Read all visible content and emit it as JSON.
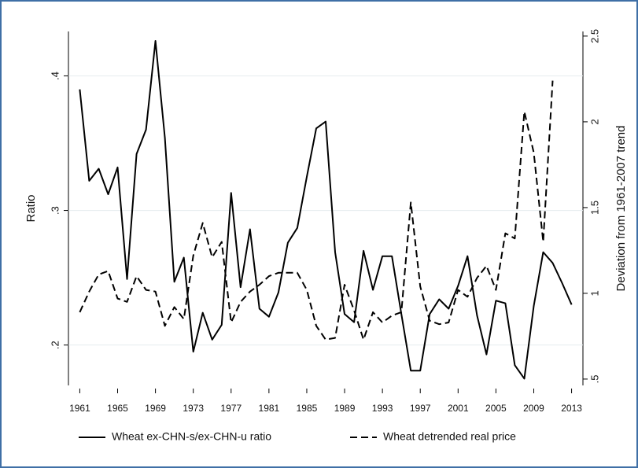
{
  "chart_data": {
    "type": "line",
    "x": [
      1961,
      1962,
      1963,
      1964,
      1965,
      1966,
      1967,
      1968,
      1969,
      1970,
      1971,
      1972,
      1973,
      1974,
      1975,
      1976,
      1977,
      1978,
      1979,
      1980,
      1981,
      1982,
      1983,
      1984,
      1985,
      1986,
      1987,
      1988,
      1989,
      1990,
      1991,
      1992,
      1993,
      1994,
      1995,
      1996,
      1997,
      1998,
      1999,
      2000,
      2001,
      2002,
      2003,
      2004,
      2005,
      2006,
      2007,
      2008,
      2009,
      2010,
      2011,
      2012,
      2013
    ],
    "xlim": [
      1959.8,
      2014.2
    ],
    "xticks": [
      1961,
      1965,
      1969,
      1973,
      1977,
      1981,
      1985,
      1989,
      1993,
      1997,
      2001,
      2005,
      2009,
      2013
    ],
    "ylabel": "Ratio",
    "y2label": "Deviation from 1961-2007 trend",
    "ylim": [
      0.17,
      0.433
    ],
    "yticks": [
      {
        "value": 0.2,
        "label": ".2"
      },
      {
        "value": 0.3,
        "label": ".3"
      },
      {
        "value": 0.4,
        "label": ".4"
      }
    ],
    "y2lim": [
      0.463,
      2.527
    ],
    "y2ticks": [
      {
        "value": 0.5,
        "label": ".5"
      },
      1,
      1.5,
      2,
      2.5
    ],
    "grid": true,
    "legend": "bottom",
    "series": [
      {
        "name": "Wheat ex-CHN-s/ex-CHN-u ratio",
        "color": "#000000",
        "style": "solid",
        "values": [
          0.39,
          0.322,
          0.331,
          0.312,
          0.332,
          0.249,
          0.342,
          0.36,
          0.426,
          0.354,
          0.247,
          0.265,
          0.195,
          0.224,
          0.204,
          0.215,
          0.313,
          0.243,
          0.286,
          0.227,
          0.221,
          0.239,
          0.276,
          0.287,
          0.325,
          0.361,
          0.366,
          0.269,
          0.223,
          0.217,
          0.27,
          0.241,
          0.266,
          0.266,
          0.223,
          0.181,
          0.181,
          0.223,
          0.234,
          0.227,
          0.244,
          0.266,
          0.222,
          0.193,
          0.233,
          0.231,
          0.185,
          0.175,
          0.229,
          0.269,
          0.261,
          0.246,
          0.23
        ]
      },
      {
        "name": "Wheat detrended real price",
        "color": "#000000",
        "style": "dashed",
        "axis": "y2",
        "values": [
          0.89,
          1.01,
          1.11,
          1.13,
          0.97,
          0.95,
          1.1,
          1.02,
          1.01,
          0.81,
          0.92,
          0.85,
          1.22,
          1.41,
          1.21,
          1.3,
          0.83,
          0.95,
          1.01,
          1.05,
          1.1,
          1.12,
          1.12,
          1.12,
          1.02,
          0.81,
          0.73,
          0.74,
          1.05,
          0.9,
          0.73,
          0.89,
          0.83,
          0.87,
          0.89,
          1.53,
          1.04,
          0.84,
          0.82,
          0.83,
          1.02,
          0.98,
          1.09,
          1.16,
          1.02,
          1.35,
          1.32,
          2.06,
          1.82,
          1.3,
          2.24,
          null,
          null
        ]
      }
    ]
  }
}
